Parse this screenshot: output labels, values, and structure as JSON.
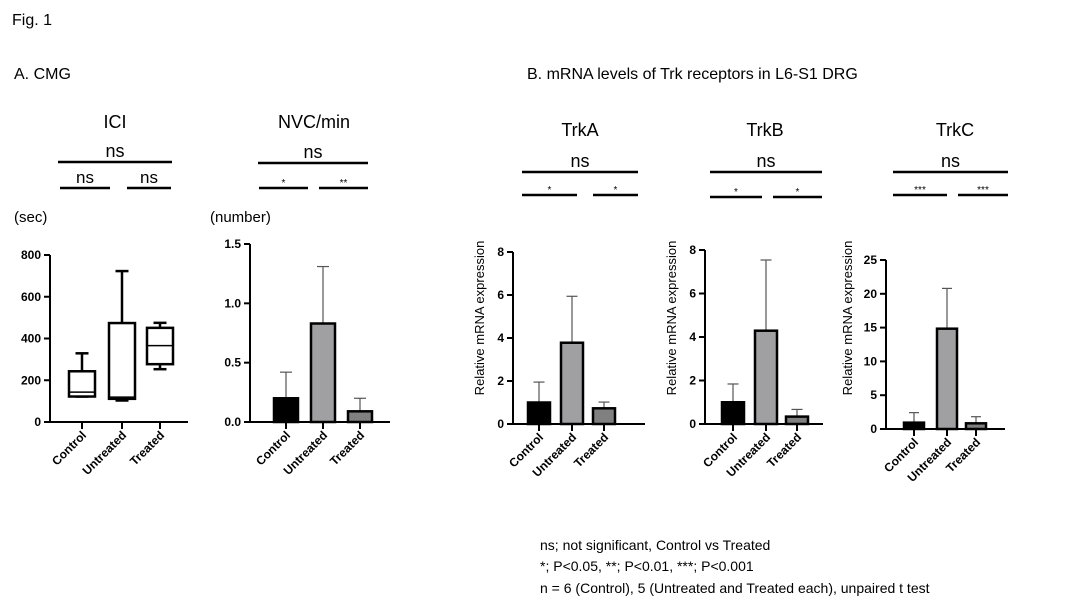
{
  "figure_label": "Fig. 1",
  "section_a": "A. CMG",
  "section_b": "B. mRNA levels of Trk receptors in L6-S1 DRG",
  "footnotes": [
    "ns; not significant, Control vs Treated",
    "*; P<0.05, **; P<0.01, ***; P<0.001",
    "n = 6 (Control), 5 (Untreated and Treated each), unpaired t test"
  ],
  "colors": {
    "control": "#000000",
    "untreated": "#a0a0a2",
    "treated": "#808080",
    "box": "#ffffff"
  },
  "chart_data": [
    {
      "type": "box",
      "title": "ICI",
      "ylabel": "(sec)",
      "ylim": [
        0,
        800
      ],
      "yticks": [
        "0",
        "200",
        "400",
        "600",
        "800"
      ],
      "categories": [
        "Control",
        "Untreated",
        "Treated"
      ],
      "boxes": [
        {
          "min": 122,
          "q1": 122,
          "median": 143,
          "q3": 243,
          "max": 329
        },
        {
          "min": 103,
          "q1": 111,
          "median": 119,
          "q3": 474,
          "max": 723
        },
        {
          "min": 253,
          "q1": 277,
          "median": 366,
          "q3": 451,
          "max": 475
        }
      ],
      "significance": {
        "overall": "ns",
        "left": "ns",
        "right": "ns"
      }
    },
    {
      "type": "bar",
      "title": "NVC/min",
      "ylabel": "(number)",
      "ylim": [
        0,
        1.5
      ],
      "yticks": [
        "0.0",
        "0.5",
        "1.0",
        "1.5"
      ],
      "categories": [
        "Control",
        "Untreated",
        "Treated"
      ],
      "values": [
        0.2,
        0.83,
        0.09
      ],
      "errors_upper": [
        0.42,
        1.31,
        0.2
      ],
      "significance": {
        "overall": "ns",
        "left": "*",
        "right": "**"
      }
    },
    {
      "type": "bar",
      "title": "TrkA",
      "ylabel": "Relative mRNA expression",
      "ylim": [
        0,
        8
      ],
      "yticks": [
        "0",
        "2",
        "4",
        "6",
        "8"
      ],
      "categories": [
        "Control",
        "Untreated",
        "Treated"
      ],
      "values": [
        1.0,
        3.78,
        0.73
      ],
      "errors_upper": [
        1.95,
        5.94,
        1.02
      ],
      "significance": {
        "overall": "ns",
        "left": "*",
        "right": "*"
      }
    },
    {
      "type": "bar",
      "title": "TrkB",
      "ylabel": "Relative mRNA expression",
      "ylim": [
        0,
        8
      ],
      "yticks": [
        "0",
        "2",
        "4",
        "6",
        "8"
      ],
      "categories": [
        "Control",
        "Untreated",
        "Treated"
      ],
      "values": [
        1.0,
        4.29,
        0.34
      ],
      "errors_upper": [
        1.84,
        7.54,
        0.67
      ],
      "significance": {
        "overall": "ns",
        "left": "*",
        "right": "*"
      }
    },
    {
      "type": "bar",
      "title": "TrkC",
      "ylabel": "Relative mRNA expression",
      "ylim": [
        0,
        25
      ],
      "yticks": [
        "0",
        "5",
        "10",
        "15",
        "20",
        "25"
      ],
      "categories": [
        "Control",
        "Untreated",
        "Treated"
      ],
      "values": [
        0.94,
        14.84,
        0.84
      ],
      "errors_upper": [
        2.42,
        20.8,
        1.82
      ],
      "significance": {
        "overall": "ns",
        "left": "***",
        "right": "***"
      }
    }
  ]
}
